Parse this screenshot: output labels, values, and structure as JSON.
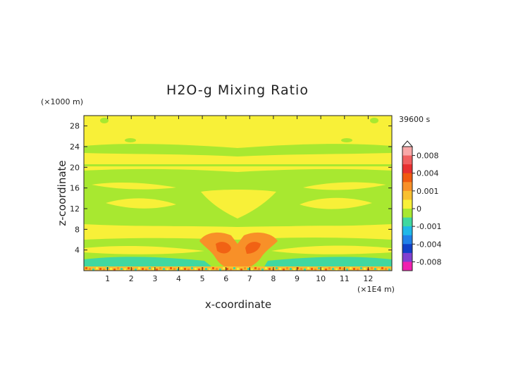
{
  "chart_data": {
    "type": "heatmap",
    "title": "H2O-g Mixing Ratio",
    "xlabel": "x-coordinate",
    "ylabel": "z-coordinate",
    "x_unit": "(×1E4 m)",
    "y_unit": "(×1000 m)",
    "time_label": "39600 s",
    "xlim": [
      0,
      13
    ],
    "ylim": [
      0,
      30
    ],
    "x_ticks": [
      1,
      2,
      3,
      4,
      5,
      6,
      7,
      8,
      9,
      10,
      11,
      12
    ],
    "y_ticks": [
      4,
      8,
      12,
      16,
      20,
      24,
      28
    ],
    "colorbar": {
      "min": -0.01,
      "max": 0.01,
      "tick_labels": [
        "0.008",
        "0.004",
        "0.001",
        "0",
        "-0.001",
        "-0.004",
        "-0.008"
      ],
      "tick_values": [
        0.008,
        0.004,
        0.001,
        0,
        -0.001,
        -0.004,
        -0.008
      ],
      "levels": [
        {
          "lo": 0.008,
          "hi": 0.01,
          "color": "#f8a8a8"
        },
        {
          "lo": 0.006,
          "hi": 0.008,
          "color": "#f06060"
        },
        {
          "lo": 0.004,
          "hi": 0.006,
          "color": "#e83030"
        },
        {
          "lo": 0.002,
          "hi": 0.004,
          "color": "#f05a10"
        },
        {
          "lo": 0.001,
          "hi": 0.002,
          "color": "#f89028"
        },
        {
          "lo": 0.0005,
          "hi": 0.001,
          "color": "#f8c030"
        },
        {
          "lo": 0,
          "hi": 0.0005,
          "color": "#f8f038"
        },
        {
          "lo": -0.0005,
          "hi": 0,
          "color": "#a8e830"
        },
        {
          "lo": -0.001,
          "hi": -0.0005,
          "color": "#40d8a0"
        },
        {
          "lo": -0.002,
          "hi": -0.001,
          "color": "#20b8e8"
        },
        {
          "lo": -0.004,
          "hi": -0.002,
          "color": "#2080e8"
        },
        {
          "lo": -0.006,
          "hi": -0.004,
          "color": "#1040c8"
        },
        {
          "lo": -0.008,
          "hi": -0.006,
          "color": "#8040d0"
        },
        {
          "lo": -0.01,
          "hi": -0.008,
          "color": "#f020b0"
        }
      ]
    }
  }
}
